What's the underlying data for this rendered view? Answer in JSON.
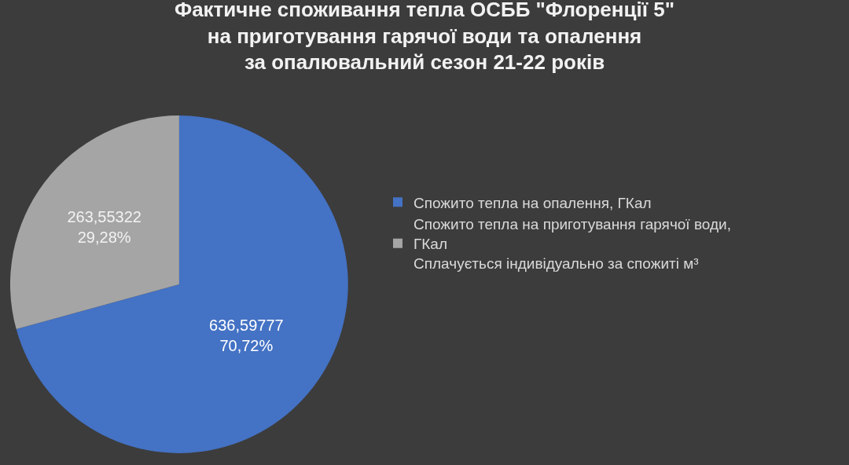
{
  "chart_data": {
    "type": "pie",
    "title": "Фактичне споживання тепла ОСББ \"Флоренції 5\"\nна приготування гарячої води та опалення\nза опалювальний сезон 21-22 років",
    "categories": [
      "Спожито тепла на опалення, ГКал",
      "Спожито тепла на приготування гарячої води,\nГКал\nСплачується індивідуально за спожиті м³"
    ],
    "values": [
      70.72,
      29.28
    ],
    "colors": [
      "#4472c4",
      "#a5a5a5"
    ],
    "value_labels": [
      "636,59777\n70,72%",
      "263,55322\n29,28%"
    ],
    "legend": "right"
  }
}
